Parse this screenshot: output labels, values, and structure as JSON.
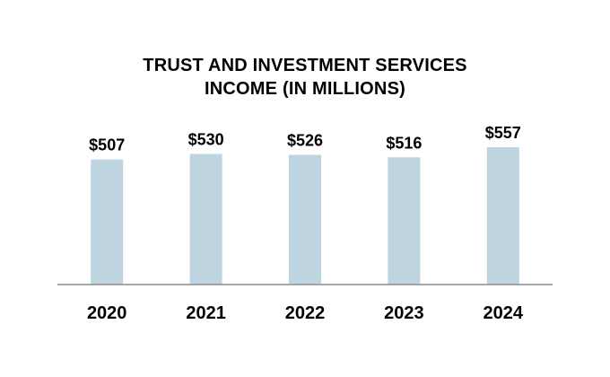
{
  "chart_data": {
    "type": "bar",
    "title_lines": [
      "TRUST AND INVESTMENT SERVICES",
      "INCOME (IN MILLIONS)"
    ],
    "categories": [
      "2020",
      "2021",
      "2022",
      "2023",
      "2024"
    ],
    "values": [
      507,
      530,
      526,
      516,
      557
    ],
    "value_labels": [
      "$507",
      "$530",
      "$526",
      "$516",
      "$557"
    ],
    "xlabel": "",
    "ylabel": "",
    "ylim": [
      0,
      557
    ],
    "grid": false,
    "colors": {
      "bar": "#bed5e1",
      "axis": "#8c8c8c",
      "text": "#000000"
    }
  }
}
